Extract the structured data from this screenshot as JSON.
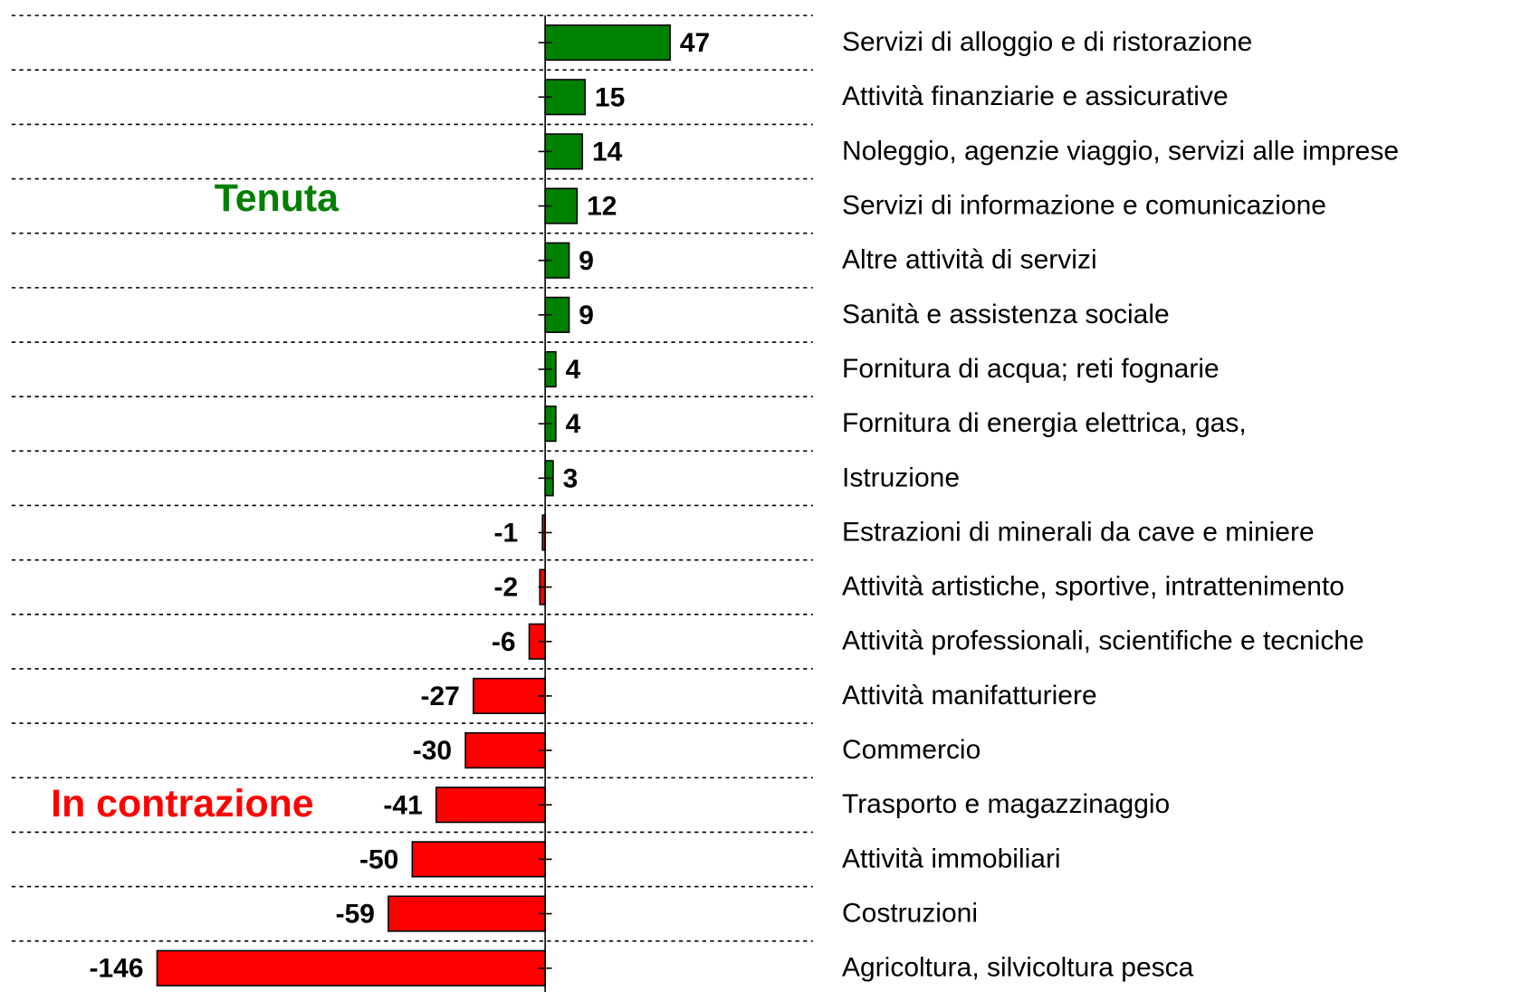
{
  "chart_data": {
    "type": "hbar",
    "categories": [
      "Servizi di alloggio e di ristorazione",
      "Attività finanziarie e assicurative",
      "Noleggio, agenzie viaggio, servizi alle imprese",
      "Servizi di informazione e comunicazione",
      "Altre attività di servizi",
      "Sanità e assistenza sociale",
      "Fornitura di acqua; reti fognarie",
      "Fornitura di energia elettrica, gas,",
      "Istruzione",
      "Estrazioni di minerali da cave e miniere",
      "Attività artistiche, sportive, intrattenimento",
      "Attività professionali, scientifiche e tecniche",
      "Attività manifatturiere",
      "Commercio",
      "Trasporto e magazzinaggio",
      "Attività immobiliari",
      "Costruzioni",
      "Agricoltura, silvicoltura pesca"
    ],
    "values": [
      47,
      15,
      14,
      12,
      9,
      9,
      4,
      4,
      3,
      -1,
      -2,
      -6,
      -27,
      -30,
      -41,
      -50,
      -59,
      -146
    ],
    "color_positive": "#008000",
    "color_negative": "#ff0000",
    "xlim": [
      -200,
      100
    ],
    "grid": true,
    "annotations": [
      {
        "text": "Tenuta",
        "color": "#008000"
      },
      {
        "text": "In contrazione",
        "color": "#ff0000"
      }
    ]
  }
}
